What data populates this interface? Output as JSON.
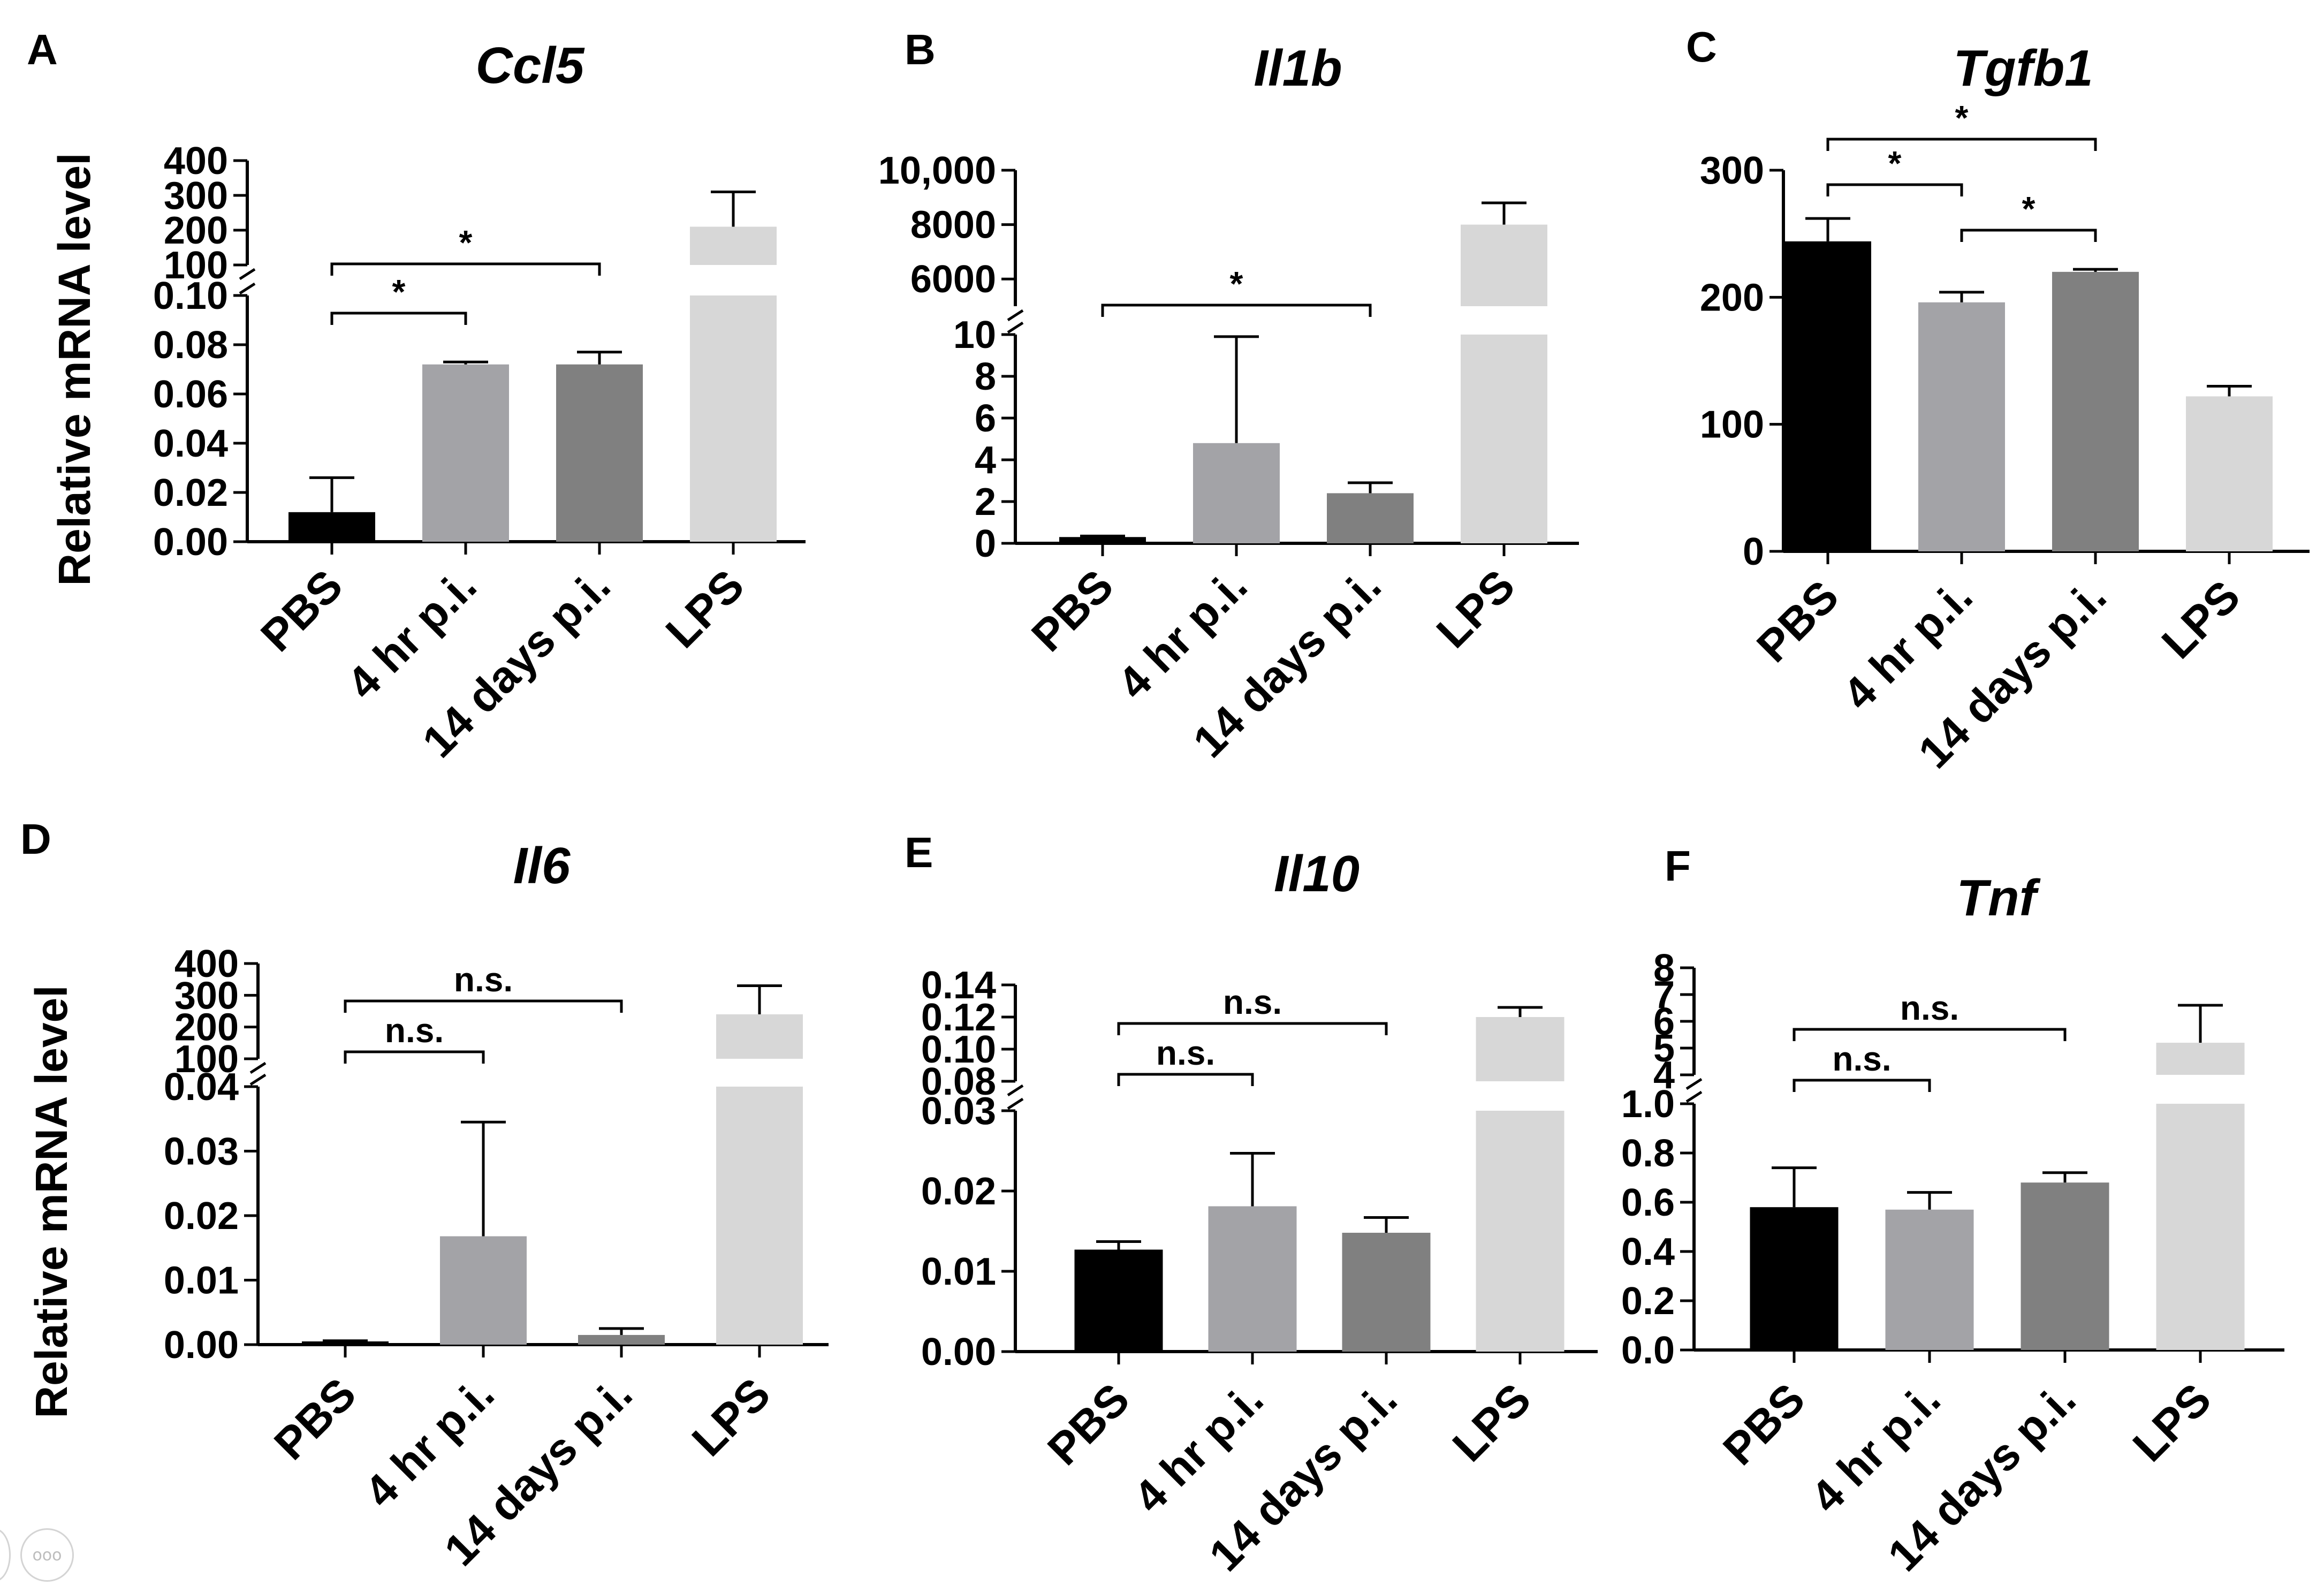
{
  "y_axis_label": "Relative mRNA level",
  "more_button_icon": "more-icon",
  "more_button_label": "ooo",
  "colors": {
    "PBS": "#000000",
    "4 hr p.i.": "#a3a3a7",
    "14 days p.i.": "#808080",
    "LPS": "#d7d7d7"
  },
  "chart_data": [
    {
      "letter": "A",
      "title": "Ccl5",
      "type": "bar",
      "broken_axis": true,
      "show_ylabel": true,
      "categories": [
        "PBS",
        "4 hr p.i.",
        "14 days p.i.",
        "LPS"
      ],
      "values": [
        0.012,
        0.072,
        0.072,
        210
      ],
      "errors": [
        0.014,
        0.001,
        0.005,
        100
      ],
      "lower_axis": {
        "range": [
          0,
          0.1
        ],
        "ticks": [
          0,
          0.02,
          0.04,
          0.06,
          0.08,
          0.1
        ],
        "labels": [
          "0.00",
          "0.02",
          "0.04",
          "0.06",
          "0.08",
          "0.10"
        ]
      },
      "upper_axis": {
        "range": [
          100,
          400
        ],
        "ticks": [
          100,
          200,
          300,
          400
        ],
        "labels": [
          "100",
          "200",
          "300",
          "400"
        ]
      },
      "comparisons": [
        {
          "from": 0,
          "to": 1,
          "label": "*",
          "level": 0
        },
        {
          "from": 0,
          "to": 2,
          "label": "*",
          "level": 1
        }
      ]
    },
    {
      "letter": "B",
      "title": "Il1b",
      "type": "bar",
      "broken_axis": true,
      "show_ylabel": false,
      "categories": [
        "PBS",
        "4 hr p.i.",
        "14 days p.i.",
        "LPS"
      ],
      "values": [
        0.3,
        4.8,
        2.4,
        8000
      ],
      "errors": [
        0.05,
        5.1,
        0.5,
        800
      ],
      "lower_axis": {
        "range": [
          0,
          10
        ],
        "ticks": [
          0,
          2,
          4,
          6,
          8,
          10
        ],
        "labels": [
          "0",
          "2",
          "4",
          "6",
          "8",
          "10"
        ]
      },
      "upper_axis": {
        "range": [
          5000,
          10000
        ],
        "ticks": [
          6000,
          8000,
          10000
        ],
        "labels": [
          "6000",
          "8000",
          "10,000"
        ]
      },
      "comparisons": [
        {
          "from": 0,
          "to": 2,
          "label": "*",
          "level": 0
        }
      ]
    },
    {
      "letter": "C",
      "title": "Tgfb1",
      "type": "bar",
      "broken_axis": false,
      "show_ylabel": false,
      "categories": [
        "PBS",
        "4 hr p.i.",
        "14 days p.i.",
        "LPS"
      ],
      "values": [
        244,
        196,
        220,
        122
      ],
      "errors": [
        18,
        8,
        2,
        8
      ],
      "lower_axis": {
        "range": [
          0,
          300
        ],
        "ticks": [
          0,
          100,
          200,
          300
        ],
        "labels": [
          "0",
          "100",
          "200",
          "300"
        ]
      },
      "comparisons": [
        {
          "from": 1,
          "to": 2,
          "label": "*",
          "level": 0
        },
        {
          "from": 0,
          "to": 1,
          "label": "*",
          "level": 1
        },
        {
          "from": 0,
          "to": 2,
          "label": "*",
          "level": 2
        }
      ]
    },
    {
      "letter": "D",
      "title": "Il6",
      "type": "bar",
      "broken_axis": true,
      "show_ylabel": true,
      "categories": [
        "PBS",
        "4 hr p.i.",
        "14 days p.i.",
        "LPS"
      ],
      "values": [
        0.0005,
        0.0168,
        0.0015,
        240
      ],
      "errors": [
        0.0001,
        0.0177,
        0.001,
        90
      ],
      "lower_axis": {
        "range": [
          0,
          0.04
        ],
        "ticks": [
          0,
          0.01,
          0.02,
          0.03,
          0.04
        ],
        "labels": [
          "0.00",
          "0.01",
          "0.02",
          "0.03",
          "0.04"
        ]
      },
      "upper_axis": {
        "range": [
          100,
          400
        ],
        "ticks": [
          100,
          200,
          300,
          400
        ],
        "labels": [
          "100",
          "200",
          "300",
          "400"
        ]
      },
      "comparisons": [
        {
          "from": 0,
          "to": 1,
          "label": "n.s.",
          "level": 0
        },
        {
          "from": 0,
          "to": 2,
          "label": "n.s.",
          "level": 1
        }
      ]
    },
    {
      "letter": "E",
      "title": "Il10",
      "type": "bar",
      "broken_axis": true,
      "show_ylabel": false,
      "categories": [
        "PBS",
        "4 hr p.i.",
        "14 days p.i.",
        "LPS"
      ],
      "values": [
        0.0127,
        0.0181,
        0.0148,
        0.12
      ],
      "errors": [
        0.001,
        0.0066,
        0.0019,
        0.006
      ],
      "lower_axis": {
        "range": [
          0,
          0.03
        ],
        "ticks": [
          0,
          0.01,
          0.02,
          0.03
        ],
        "labels": [
          "0.00",
          "0.01",
          "0.02",
          "0.03"
        ]
      },
      "upper_axis": {
        "range": [
          0.08,
          0.14
        ],
        "ticks": [
          0.08,
          0.1,
          0.12,
          0.14
        ],
        "labels": [
          "0.08",
          "0.10",
          "0.12",
          "0.14"
        ]
      },
      "comparisons": [
        {
          "from": 0,
          "to": 1,
          "label": "n.s.",
          "level": 0
        },
        {
          "from": 0,
          "to": 2,
          "label": "n.s.",
          "level": 1
        }
      ]
    },
    {
      "letter": "F",
      "title": "Tnf",
      "type": "bar",
      "broken_axis": true,
      "show_ylabel": false,
      "categories": [
        "PBS",
        "4 hr p.i.",
        "14 days p.i.",
        "LPS"
      ],
      "values": [
        0.58,
        0.57,
        0.68,
        5.2
      ],
      "errors": [
        0.16,
        0.07,
        0.04,
        1.4
      ],
      "lower_axis": {
        "range": [
          0,
          1
        ],
        "ticks": [
          0,
          0.2,
          0.4,
          0.6,
          0.8,
          1.0
        ],
        "labels": [
          "0.0",
          "0.2",
          "0.4",
          "0.6",
          "0.8",
          "1.0"
        ]
      },
      "upper_axis": {
        "range": [
          4,
          8
        ],
        "ticks": [
          4,
          5,
          6,
          7,
          8
        ],
        "labels": [
          "4",
          "5",
          "6",
          "7",
          "8"
        ]
      },
      "comparisons": [
        {
          "from": 0,
          "to": 1,
          "label": "n.s.",
          "level": 0
        },
        {
          "from": 0,
          "to": 2,
          "label": "n.s.",
          "level": 1
        }
      ]
    }
  ]
}
